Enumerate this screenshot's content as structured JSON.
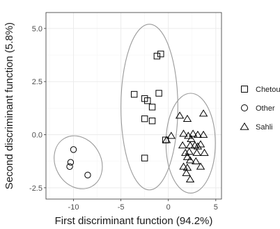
{
  "chart_data": {
    "type": "scatter",
    "title": "",
    "xlabel": "First discriminant function (94.2%)",
    "ylabel": "Second discriminant function (5.8%)",
    "xlim": [
      -12.9,
      5.6
    ],
    "ylim": [
      -3.03,
      5.75
    ],
    "xticks": [
      -10,
      -5,
      0,
      5
    ],
    "yticks": [
      5.0,
      2.5,
      0.0,
      -2.5
    ],
    "xtick_labels": [
      "-10",
      "-5",
      "0",
      "5"
    ],
    "ytick_labels": [
      "5.0",
      "2.5",
      "0.0",
      "-2.5"
    ],
    "grid": true,
    "legend_position": "right",
    "series": [
      {
        "name": "Chetoui",
        "marker": "square",
        "points": [
          [
            -1.2,
            3.7
          ],
          [
            -0.8,
            3.8
          ],
          [
            -3.6,
            1.9
          ],
          [
            -2.5,
            1.7
          ],
          [
            -2.2,
            1.6
          ],
          [
            -1.0,
            1.95
          ],
          [
            -1.7,
            1.3
          ],
          [
            -2.5,
            0.75
          ],
          [
            -1.7,
            0.65
          ],
          [
            -0.3,
            -0.25
          ],
          [
            -2.5,
            -1.1
          ]
        ]
      },
      {
        "name": "Other",
        "marker": "circle",
        "points": [
          [
            -10.0,
            -0.7
          ],
          [
            -10.3,
            -1.3
          ],
          [
            -10.4,
            -1.5
          ],
          [
            -8.5,
            -1.9
          ]
        ]
      },
      {
        "name": "Sahli",
        "marker": "triangle",
        "points": [
          [
            1.2,
            0.9
          ],
          [
            2.0,
            0.75
          ],
          [
            3.7,
            1.0
          ],
          [
            0.3,
            -0.05
          ],
          [
            1.6,
            0.05
          ],
          [
            2.1,
            -0.05
          ],
          [
            2.6,
            0.05
          ],
          [
            3.1,
            0.0
          ],
          [
            3.7,
            0.0
          ],
          [
            2.4,
            -0.2
          ],
          [
            -0.2,
            -0.25
          ],
          [
            1.5,
            -0.5
          ],
          [
            2.3,
            -0.5
          ],
          [
            2.8,
            -0.5
          ],
          [
            3.1,
            -0.55
          ],
          [
            3.4,
            -0.45
          ],
          [
            1.8,
            -0.85
          ],
          [
            2.2,
            -0.8
          ],
          [
            3.0,
            -0.85
          ],
          [
            3.8,
            -0.85
          ],
          [
            2.0,
            -1.05
          ],
          [
            2.3,
            -1.2
          ],
          [
            2.9,
            -1.25
          ],
          [
            1.6,
            -1.5
          ],
          [
            2.0,
            -1.55
          ],
          [
            3.4,
            -1.5
          ],
          [
            1.9,
            -1.8
          ],
          [
            2.3,
            -2.1
          ]
        ]
      }
    ],
    "ellipses": [
      {
        "name": "Other",
        "cx": -9.5,
        "cy": -1.3,
        "rx": 2.4,
        "ry": 1.3,
        "angle": -30
      },
      {
        "name": "Chetoui",
        "cx": -2.0,
        "cy": 1.3,
        "rx": 3.0,
        "ry": 3.9,
        "angle": 0
      },
      {
        "name": "Sahli",
        "cx": 2.35,
        "cy": -0.4,
        "rx": 2.6,
        "ry": 2.35,
        "angle": 0
      }
    ],
    "colors": {
      "panel_background": "#ffffff",
      "grid_major": "#ebebeb",
      "grid_minor": "#f5f5f5",
      "panel_border": "#333333",
      "marker_stroke": "#000000",
      "ellipse_stroke": "#999999"
    }
  }
}
